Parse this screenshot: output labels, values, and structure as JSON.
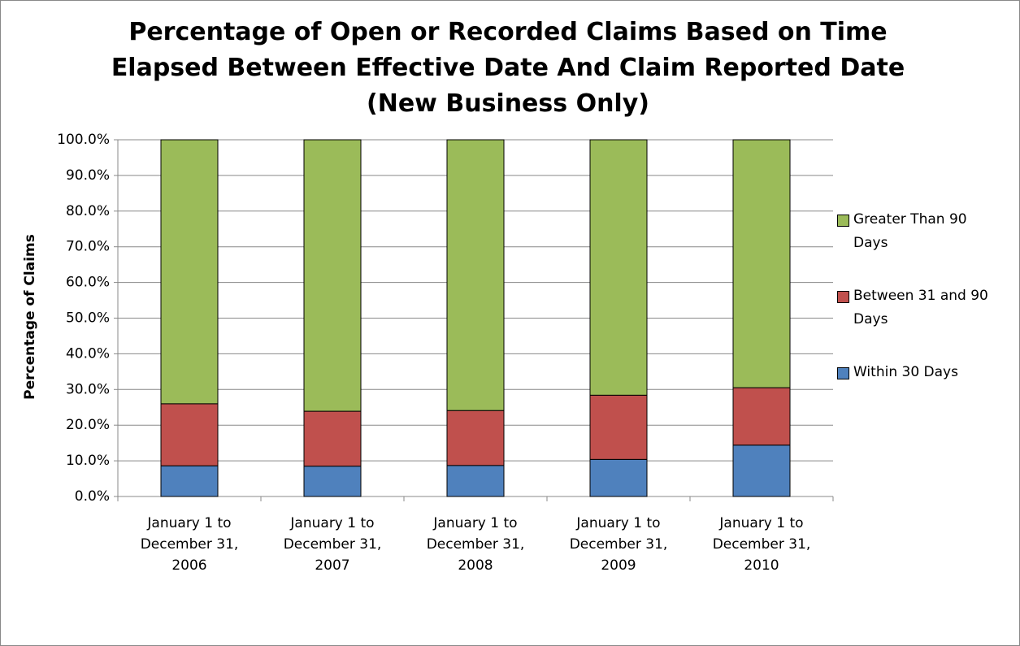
{
  "chart_data": {
    "type": "stacked_bar",
    "title": "Percentage of Open or Recorded Claims Based on Time Elapsed Between Effective Date And Claim Reported Date (New Business Only)",
    "y_label": "Percentage of Claims",
    "categories": [
      "January 1 to December 31, 2006",
      "January 1 to December 31, 2007",
      "January 1 to December 31, 2008",
      "January 1 to December 31, 2009",
      "January 1 to December 31, 2010"
    ],
    "series": [
      {
        "name": "Within 30 Days",
        "color": "#4f81bd",
        "values": [
          8.6,
          8.5,
          8.7,
          10.4,
          14.4
        ]
      },
      {
        "name": "Between 31 and 90 Days",
        "color": "#c0504d",
        "values": [
          17.4,
          15.4,
          15.4,
          18.0,
          16.1
        ]
      },
      {
        "name": "Greater Than 90 Days",
        "color": "#9bbb59",
        "values": [
          74.0,
          76.1,
          75.9,
          71.6,
          69.5
        ]
      }
    ],
    "ylim": [
      0,
      100
    ],
    "yticks": [
      {
        "value": 0,
        "label": "0.0%"
      },
      {
        "value": 10,
        "label": "10.0%"
      },
      {
        "value": 20,
        "label": "20.0%"
      },
      {
        "value": 30,
        "label": "30.0%"
      },
      {
        "value": 40,
        "label": "40.0%"
      },
      {
        "value": 50,
        "label": "50.0%"
      },
      {
        "value": 60,
        "label": "60.0%"
      },
      {
        "value": 70,
        "label": "70.0%"
      },
      {
        "value": 80,
        "label": "80.0%"
      },
      {
        "value": 90,
        "label": "90.0%"
      },
      {
        "value": 100,
        "label": "100.0%"
      }
    ],
    "grid": true,
    "legend": "right"
  }
}
